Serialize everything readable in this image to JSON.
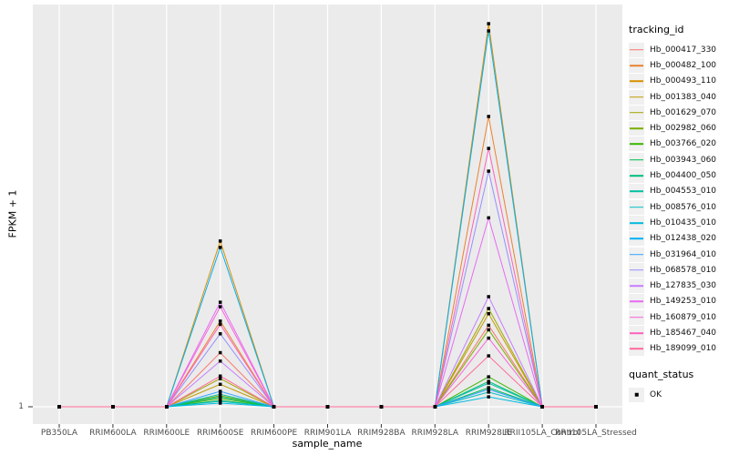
{
  "chart_data": {
    "type": "line",
    "title": "",
    "xlabel": "sample_name",
    "ylabel": "FPKM + 1",
    "x_categories": [
      "PB350LA",
      "RRIM600LA",
      "RRIM600LE",
      "RRIM600SE",
      "RRIM600PE",
      "RRIM901LA",
      "RRIM928BA",
      "RRIM928LA",
      "RRIM928LE",
      "RRII105LA_Control",
      "RRII105LA_Stressed"
    ],
    "y_scale": "log10",
    "y_ticks": [
      1
    ],
    "y_tick_label": "1",
    "ylim_log10": [
      0,
      3.6
    ],
    "grid": "major-only",
    "point_marker": "black-square",
    "legend_position": "right",
    "legend": {
      "title": "tracking_id"
    },
    "legend2": {
      "title": "quant_status",
      "items": [
        {
          "label": "OK",
          "marker": "black-square"
        }
      ]
    },
    "series": [
      {
        "name": "Hb_000417_330",
        "color": "#F8766D",
        "values": [
          1,
          1,
          1,
          3.1,
          1,
          1,
          1,
          1,
          5.5,
          1,
          1
        ]
      },
      {
        "name": "Hb_000482_100",
        "color": "#EA8331",
        "values": [
          1,
          1,
          1,
          6,
          1,
          1,
          1,
          1,
          433,
          1,
          1
        ]
      },
      {
        "name": "Hb_000493_110",
        "color": "#D89000",
        "values": [
          1,
          1,
          1,
          32,
          1,
          1,
          1,
          1,
          3013,
          1,
          1
        ]
      },
      {
        "name": "Hb_001383_040",
        "color": "#C09B00",
        "values": [
          1,
          1,
          1,
          1.6,
          1,
          1,
          1,
          1,
          7,
          1,
          1
        ]
      },
      {
        "name": "Hb_001629_070",
        "color": "#A3A500",
        "values": [
          1,
          1,
          1,
          1.8,
          1,
          1,
          1,
          1,
          7.8,
          1,
          1
        ]
      },
      {
        "name": "Hb_002982_060",
        "color": "#7CAE00",
        "values": [
          1,
          1,
          1,
          1.26,
          1,
          1,
          1,
          1,
          5,
          1,
          1
        ]
      },
      {
        "name": "Hb_003766_020",
        "color": "#39B600",
        "values": [
          1,
          1,
          1,
          1.19,
          1,
          1,
          1,
          1,
          1.87,
          1,
          1
        ]
      },
      {
        "name": "Hb_003943_060",
        "color": "#00BB4E",
        "values": [
          1,
          1,
          1,
          1.14,
          1,
          1,
          1,
          1,
          1.49,
          1,
          1
        ]
      },
      {
        "name": "Hb_004400_050",
        "color": "#00BF7D",
        "values": [
          1,
          1,
          1,
          1.23,
          1,
          1,
          1,
          1,
          1.7,
          1,
          1
        ]
      },
      {
        "name": "Hb_004553_010",
        "color": "#00C1A3",
        "values": [
          1,
          1,
          1,
          1.3,
          1,
          1,
          1,
          1,
          1.64,
          1,
          1
        ]
      },
      {
        "name": "Hb_008576_010",
        "color": "#00BFC4",
        "values": [
          1,
          1,
          1,
          1.12,
          1,
          1,
          1,
          1,
          1.36,
          1,
          1
        ]
      },
      {
        "name": "Hb_010435_010",
        "color": "#00BAE0",
        "values": [
          1,
          1,
          1,
          1.08,
          1,
          1,
          1,
          1,
          1.23,
          1,
          1
        ]
      },
      {
        "name": "Hb_012438_020",
        "color": "#00B0F6",
        "values": [
          1,
          1,
          1,
          28,
          1,
          1,
          1,
          1,
          2590,
          1,
          1
        ]
      },
      {
        "name": "Hb_031964_010",
        "color": "#35A2FF",
        "values": [
          1,
          1,
          1,
          1.38,
          1,
          1,
          1,
          1,
          1.44,
          1,
          1
        ]
      },
      {
        "name": "Hb_068578_010",
        "color": "#9590FF",
        "values": [
          1,
          1,
          1,
          4.6,
          1,
          1,
          1,
          1,
          138,
          1,
          1
        ]
      },
      {
        "name": "Hb_127835_030",
        "color": "#C77CFF",
        "values": [
          1,
          1,
          1,
          2.6,
          1,
          1,
          1,
          1,
          10,
          1,
          1
        ]
      },
      {
        "name": "Hb_149253_010",
        "color": "#E76BF3",
        "values": [
          1,
          1,
          1,
          8.9,
          1,
          1,
          1,
          1,
          52,
          1,
          1
        ]
      },
      {
        "name": "Hb_160879_010",
        "color": "#FA62DB",
        "values": [
          1,
          1,
          1,
          8.1,
          1,
          1,
          1,
          1,
          4.2,
          1,
          1
        ]
      },
      {
        "name": "Hb_185467_040",
        "color": "#FF62BC",
        "values": [
          1,
          1,
          1,
          5.6,
          1,
          1,
          1,
          1,
          222,
          1,
          1
        ]
      },
      {
        "name": "Hb_189099_010",
        "color": "#FF6A98",
        "values": [
          1,
          1,
          1,
          1.9,
          1,
          1,
          1,
          1,
          2.9,
          1,
          1
        ]
      }
    ]
  },
  "colors": {
    "panel_bg": "#EBEBEB",
    "gridline": "#FFFFFF",
    "tick_mark": "#333333",
    "tick_text": "#4D4D4D",
    "axis_text": "#000000",
    "point": "#000000",
    "legend_key_bg": "#F0F0F0"
  }
}
